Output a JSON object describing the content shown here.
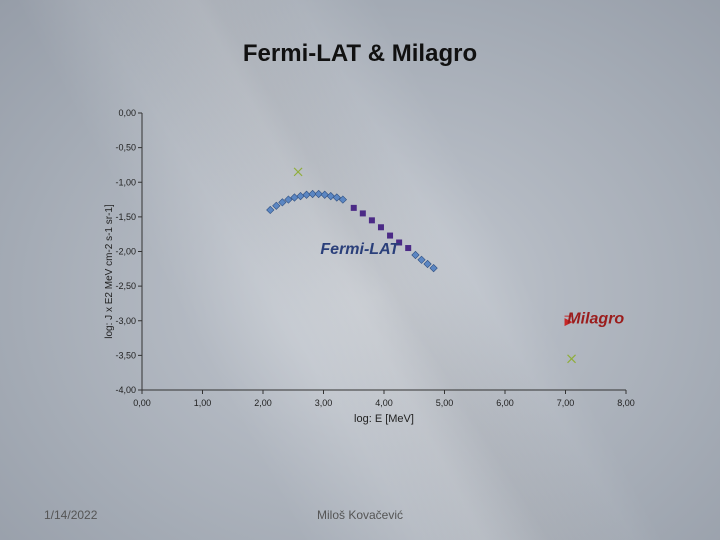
{
  "slide": {
    "title": "Fermi-LAT & Milagro",
    "date": "1/14/2022",
    "author": "Miloš Kovačević"
  },
  "colors": {
    "fermi_diamond": "#5b86c2",
    "fermi_square": "#4b2a86",
    "milagro_triangle": "#c62828",
    "cross": "#8fae3a",
    "fermi_label": "#2a3f7a",
    "milagro_label": "#9b1c1c",
    "axis": "#333333"
  },
  "chart_data": {
    "type": "scatter",
    "title": "",
    "xlabel": "log: E [MeV]",
    "ylabel": "log: J x E2 MeV cm-2 s-1 sr-1]",
    "xlim": [
      0,
      8
    ],
    "ylim": [
      -4,
      0
    ],
    "x_ticks": [
      "0,00",
      "1,00",
      "2,00",
      "3,00",
      "4,00",
      "5,00",
      "6,00",
      "7,00",
      "8,00"
    ],
    "y_ticks": [
      "0,00",
      "-0,50",
      "-1,00",
      "-1,50",
      "-2,00",
      "-2,50",
      "-3,00",
      "-3,50",
      "-4,00"
    ],
    "annotations": [
      {
        "text": "Fermi-LAT",
        "x": 3.6,
        "y": -1.95,
        "color": "#2a3f7a"
      },
      {
        "text": "Milagro",
        "x": 7.5,
        "y": -2.95,
        "color": "#9b1c1c"
      }
    ],
    "series": [
      {
        "name": "Fermi-LAT (diamonds)",
        "marker": "diamond",
        "points": [
          [
            2.12,
            -1.4
          ],
          [
            2.22,
            -1.34
          ],
          [
            2.32,
            -1.29
          ],
          [
            2.42,
            -1.25
          ],
          [
            2.52,
            -1.22
          ],
          [
            2.62,
            -1.2
          ],
          [
            2.72,
            -1.18
          ],
          [
            2.82,
            -1.17
          ],
          [
            2.92,
            -1.17
          ],
          [
            3.02,
            -1.18
          ],
          [
            3.12,
            -1.2
          ],
          [
            3.22,
            -1.22
          ],
          [
            3.32,
            -1.25
          ],
          [
            4.52,
            -2.05
          ],
          [
            4.62,
            -2.12
          ],
          [
            4.72,
            -2.18
          ],
          [
            4.82,
            -2.24
          ]
        ]
      },
      {
        "name": "Fermi-LAT (squares)",
        "marker": "square",
        "points": [
          [
            3.5,
            -1.37
          ],
          [
            3.65,
            -1.45
          ],
          [
            3.8,
            -1.55
          ],
          [
            3.95,
            -1.65
          ],
          [
            4.1,
            -1.77
          ],
          [
            4.25,
            -1.87
          ],
          [
            4.4,
            -1.95
          ]
        ]
      },
      {
        "name": "Milagro",
        "marker": "triangle",
        "points": [
          [
            7.05,
            -3.02
          ]
        ]
      },
      {
        "name": "Upper limits",
        "marker": "cross",
        "points": [
          [
            2.58,
            -0.85
          ],
          [
            7.1,
            -3.55
          ]
        ]
      }
    ]
  }
}
